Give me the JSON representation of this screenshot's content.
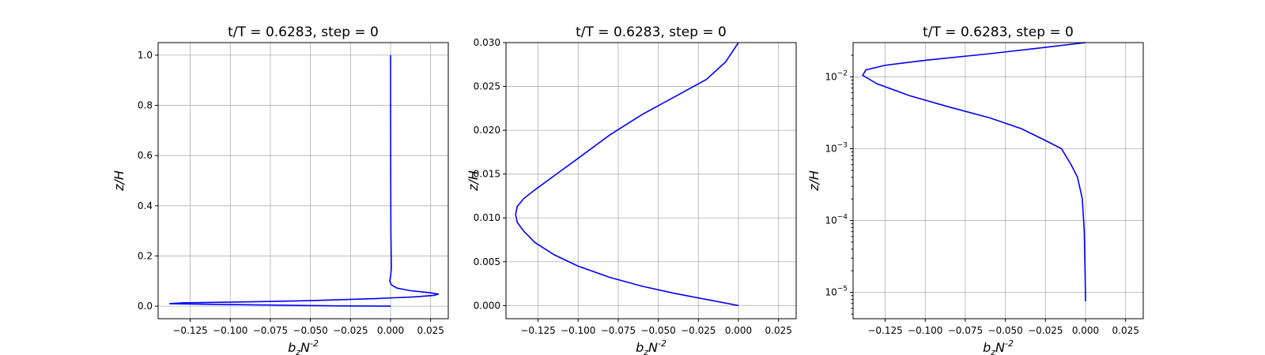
{
  "chart_data": [
    {
      "type": "line",
      "title": "t/T = 0.6283, step = 0",
      "xlabel": "b_zN^{-2}",
      "ylabel": "z/H",
      "xlim": [
        -0.145,
        0.036
      ],
      "ylim": [
        -0.05,
        1.05
      ],
      "yscale": "linear",
      "grid": true,
      "xticks": [
        -0.125,
        -0.1,
        -0.075,
        -0.05,
        -0.025,
        0.0,
        0.025
      ],
      "xtick_labels": [
        "−0.125",
        "−0.100",
        "−0.075",
        "−0.050",
        "−0.025",
        "0.000",
        "0.025"
      ],
      "yticks": [
        0.0,
        0.2,
        0.4,
        0.6,
        0.8,
        1.0
      ],
      "ytick_labels": [
        "0.0",
        "0.2",
        "0.4",
        "0.6",
        "0.8",
        "1.0"
      ],
      "series": [
        {
          "color": "#0000ff",
          "x": [
            0.0,
            -0.03,
            -0.07,
            -0.11,
            -0.138,
            -0.13,
            -0.09,
            -0.05,
            -0.01,
            0.015,
            0.027,
            0.03,
            0.024,
            0.012,
            0.004,
            0.0005,
            -0.0005,
            0.0,
            0.0005,
            0.0004,
            0.0002,
            0.0001,
            0.0,
            0.0
          ],
          "y": [
            0.0,
            0.001,
            0.004,
            0.007,
            0.01,
            0.013,
            0.017,
            0.022,
            0.03,
            0.037,
            0.043,
            0.048,
            0.054,
            0.062,
            0.072,
            0.085,
            0.1,
            0.12,
            0.15,
            0.2,
            0.3,
            0.5,
            0.8,
            1.0
          ]
        }
      ]
    },
    {
      "type": "line",
      "title": "t/T = 0.6283, step = 0",
      "xlabel": "b_zN^{-2}",
      "ylabel": "z/H",
      "xlim": [
        -0.145,
        0.036
      ],
      "ylim": [
        -0.0015,
        0.03
      ],
      "yscale": "linear",
      "grid": true,
      "xticks": [
        -0.125,
        -0.1,
        -0.075,
        -0.05,
        -0.025,
        0.0,
        0.025
      ],
      "xtick_labels": [
        "−0.125",
        "−0.100",
        "−0.075",
        "−0.050",
        "−0.025",
        "0.000",
        "0.025"
      ],
      "yticks": [
        0.0,
        0.005,
        0.01,
        0.015,
        0.02,
        0.025,
        0.03
      ],
      "ytick_labels": [
        "0.000",
        "0.005",
        "0.010",
        "0.015",
        "0.020",
        "0.025",
        "0.030"
      ],
      "series": [
        {
          "color": "#0000ff",
          "x": [
            0.0,
            -0.02,
            -0.04,
            -0.06,
            -0.08,
            -0.1,
            -0.115,
            -0.127,
            -0.134,
            -0.138,
            -0.139,
            -0.138,
            -0.134,
            -0.127,
            -0.115,
            -0.1,
            -0.08,
            -0.06,
            -0.04,
            -0.02,
            -0.008,
            0.0
          ],
          "y": [
            0.0,
            0.0007,
            0.0014,
            0.0022,
            0.0032,
            0.0045,
            0.0058,
            0.0072,
            0.0085,
            0.0095,
            0.0104,
            0.0113,
            0.0122,
            0.0132,
            0.0148,
            0.0168,
            0.0195,
            0.0218,
            0.0238,
            0.0258,
            0.0278,
            0.03
          ]
        }
      ]
    },
    {
      "type": "line",
      "title": "t/T = 0.6283, step = 0",
      "xlabel": "b_zN^{-2}",
      "ylabel": "z/H",
      "xlim": [
        -0.145,
        0.036
      ],
      "ylim": [
        4.3e-06,
        0.03
      ],
      "yscale": "log",
      "grid": true,
      "xticks": [
        -0.125,
        -0.1,
        -0.075,
        -0.05,
        -0.025,
        0.0,
        0.025
      ],
      "xtick_labels": [
        "−0.125",
        "−0.100",
        "−0.075",
        "−0.050",
        "−0.025",
        "0.000",
        "0.025"
      ],
      "yticks": [
        1e-05,
        0.0001,
        0.001,
        0.01
      ],
      "ytick_base": [
        "10",
        "10",
        "10",
        "10"
      ],
      "ytick_exp": [
        "−5",
        "−4",
        "−3",
        "−2"
      ],
      "series": [
        {
          "color": "#0000ff",
          "x": [
            0.0,
            -0.0003,
            -0.0008,
            -0.002,
            -0.005,
            -0.009,
            -0.015,
            -0.025,
            -0.04,
            -0.06,
            -0.085,
            -0.11,
            -0.13,
            -0.139,
            -0.137,
            -0.125,
            -0.1,
            -0.06,
            -0.03,
            0.0
          ],
          "y": [
            7.5e-06,
            2e-05,
            7e-05,
            0.0002,
            0.0004,
            0.0006,
            0.001,
            0.0013,
            0.0019,
            0.0027,
            0.0038,
            0.0055,
            0.008,
            0.0105,
            0.0125,
            0.0145,
            0.017,
            0.021,
            0.025,
            0.03
          ]
        }
      ]
    }
  ]
}
